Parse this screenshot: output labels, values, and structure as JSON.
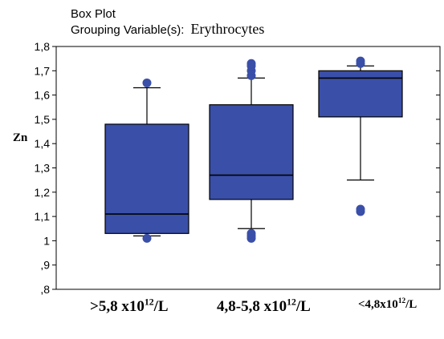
{
  "chart_data": {
    "type": "boxplot",
    "title": "Box Plot",
    "subtitle_prefix": "Grouping Variable(s):",
    "subtitle_value": "Erythrocytes",
    "ylabel": "Zn",
    "ylim": [
      0.8,
      1.8
    ],
    "yticks": [
      ",8",
      ",9",
      "1",
      "1,1",
      "1,2",
      "1,3",
      "1,4",
      "1,5",
      "1,6",
      "1,7",
      "1,8"
    ],
    "ytick_values": [
      0.8,
      0.9,
      1.0,
      1.1,
      1.2,
      1.3,
      1.4,
      1.5,
      1.6,
      1.7,
      1.8
    ],
    "box_color": "#3a4fa8",
    "outlier_color": "#3a4fa8",
    "groups": [
      {
        "label_main": ">5,8 x10",
        "label_exp": "12",
        "label_unit": "/L",
        "whisker_low": 1.02,
        "q1": 1.03,
        "median": 1.11,
        "q3": 1.48,
        "whisker_high": 1.63,
        "outliers": [
          1.01,
          1.65
        ]
      },
      {
        "label_main": "4,8-5,8 x10",
        "label_exp": "12",
        "label_unit": "/L",
        "whisker_low": 1.05,
        "q1": 1.17,
        "median": 1.27,
        "q3": 1.56,
        "whisker_high": 1.67,
        "outliers": [
          1.01,
          1.02,
          1.03,
          1.68,
          1.7,
          1.72,
          1.73
        ]
      },
      {
        "label_main": "<4,8x10",
        "label_exp": "12",
        "label_unit": "/L",
        "whisker_low": 1.25,
        "q1": 1.51,
        "median": 1.67,
        "q3": 1.7,
        "whisker_high": 1.72,
        "outliers": [
          1.12,
          1.13,
          1.73,
          1.74
        ]
      }
    ]
  }
}
